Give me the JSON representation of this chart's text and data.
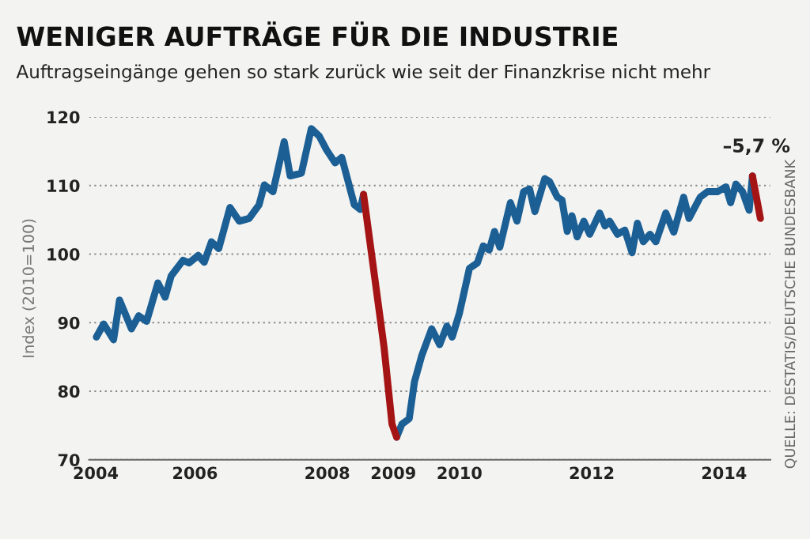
{
  "chart_data": {
    "type": "line",
    "title": "WENIGER AUFTRÄGE FÜR DIE INDUSTRIE",
    "subtitle": "Auftragseingänge gehen so stark zurück wie seit der Finanzkrise nicht mehr",
    "ylabel": "Index (2010=100)",
    "series": [
      {
        "color": "#1b5f95",
        "x": [
          2004.51,
          2004.62,
          2004.77,
          2004.86,
          2005.04,
          2005.15,
          2005.27,
          2005.44,
          2005.55,
          2005.64,
          2005.82,
          2005.91,
          2006.05,
          2006.14,
          2006.25,
          2006.36,
          2006.53,
          2006.67,
          2006.82,
          2006.97,
          2007.05,
          2007.18,
          2007.35,
          2007.44,
          2007.61,
          2007.76,
          2007.88,
          2007.99,
          2008.12,
          2008.22,
          2008.41,
          2008.5,
          2008.55,
          2008.86,
          2009.05,
          2009.13,
          2009.24,
          2009.32,
          2009.43,
          2009.58,
          2009.7,
          2009.81,
          2009.89,
          2010.0,
          2010.15,
          2010.27,
          2010.36,
          2010.45,
          2010.53,
          2010.61,
          2010.77,
          2010.87,
          2010.97,
          2011.06,
          2011.14,
          2011.29,
          2011.36,
          2011.48,
          2011.55,
          2011.63,
          2011.7,
          2011.78,
          2011.88,
          2011.97,
          2012.12,
          2012.2,
          2012.27,
          2012.39,
          2012.5,
          2012.61,
          2012.69,
          2012.78,
          2012.88,
          2012.97,
          2013.12,
          2013.24,
          2013.39,
          2013.47,
          2013.64,
          2013.75,
          2013.9,
          2014.03,
          2014.1,
          2014.18,
          2014.28,
          2014.38,
          2014.43
        ],
        "values": [
          87.9,
          89.8,
          87.5,
          93.3,
          89.1,
          91.0,
          90.2,
          95.8,
          93.7,
          96.8,
          99.1,
          98.7,
          99.8,
          98.8,
          101.8,
          100.8,
          106.8,
          104.8,
          105.2,
          107.2,
          110.1,
          109.1,
          116.4,
          111.4,
          111.8,
          118.3,
          117.2,
          115.2,
          113.3,
          114.1,
          107.2,
          106.5,
          108.7,
          null,
          73.3,
          75.2,
          76.0,
          81.4,
          85.2,
          89.1,
          86.8,
          89.5,
          87.9,
          91.4,
          97.9,
          98.7,
          101.2,
          100.6,
          103.3,
          101.0,
          107.5,
          104.8,
          109.1,
          109.5,
          106.2,
          111.0,
          110.6,
          108.3,
          107.9,
          103.3,
          105.6,
          102.5,
          104.8,
          102.9,
          106.0,
          104.1,
          104.8,
          102.9,
          103.5,
          100.2,
          104.5,
          101.8,
          102.9,
          101.8,
          106.0,
          103.2,
          108.3,
          105.2,
          108.3,
          109.1,
          109.1,
          109.8,
          107.5,
          110.2,
          109.1,
          106.4,
          111.4
        ]
      },
      {
        "color": "#a51414",
        "x": [
          2008.55,
          2008.86,
          2008.98,
          2009.05,
          2012.0,
          2014.43,
          2014.55
        ],
        "values": [
          108.7,
          86.4,
          75.2,
          73.3,
          null,
          111.4,
          105.2
        ]
      }
    ],
    "xlim": [
      2004.4,
      2014.7
    ],
    "xticks": [
      {
        "value": 2004.5,
        "label": "2004"
      },
      2006,
      2008,
      2009,
      2010,
      2012,
      2014
    ],
    "ylim": [
      70,
      120
    ],
    "yticks": [
      70,
      80,
      90,
      100,
      110,
      120
    ],
    "grid": "y",
    "legend": false,
    "marker": "none",
    "line_style": "solid",
    "annotations": [
      {
        "text": "–5,7 %",
        "x": 2014.49,
        "y": 111.4
      },
      "QUELLE: DESTATIS/DEUTSCHE BUNDESBANK"
    ]
  }
}
